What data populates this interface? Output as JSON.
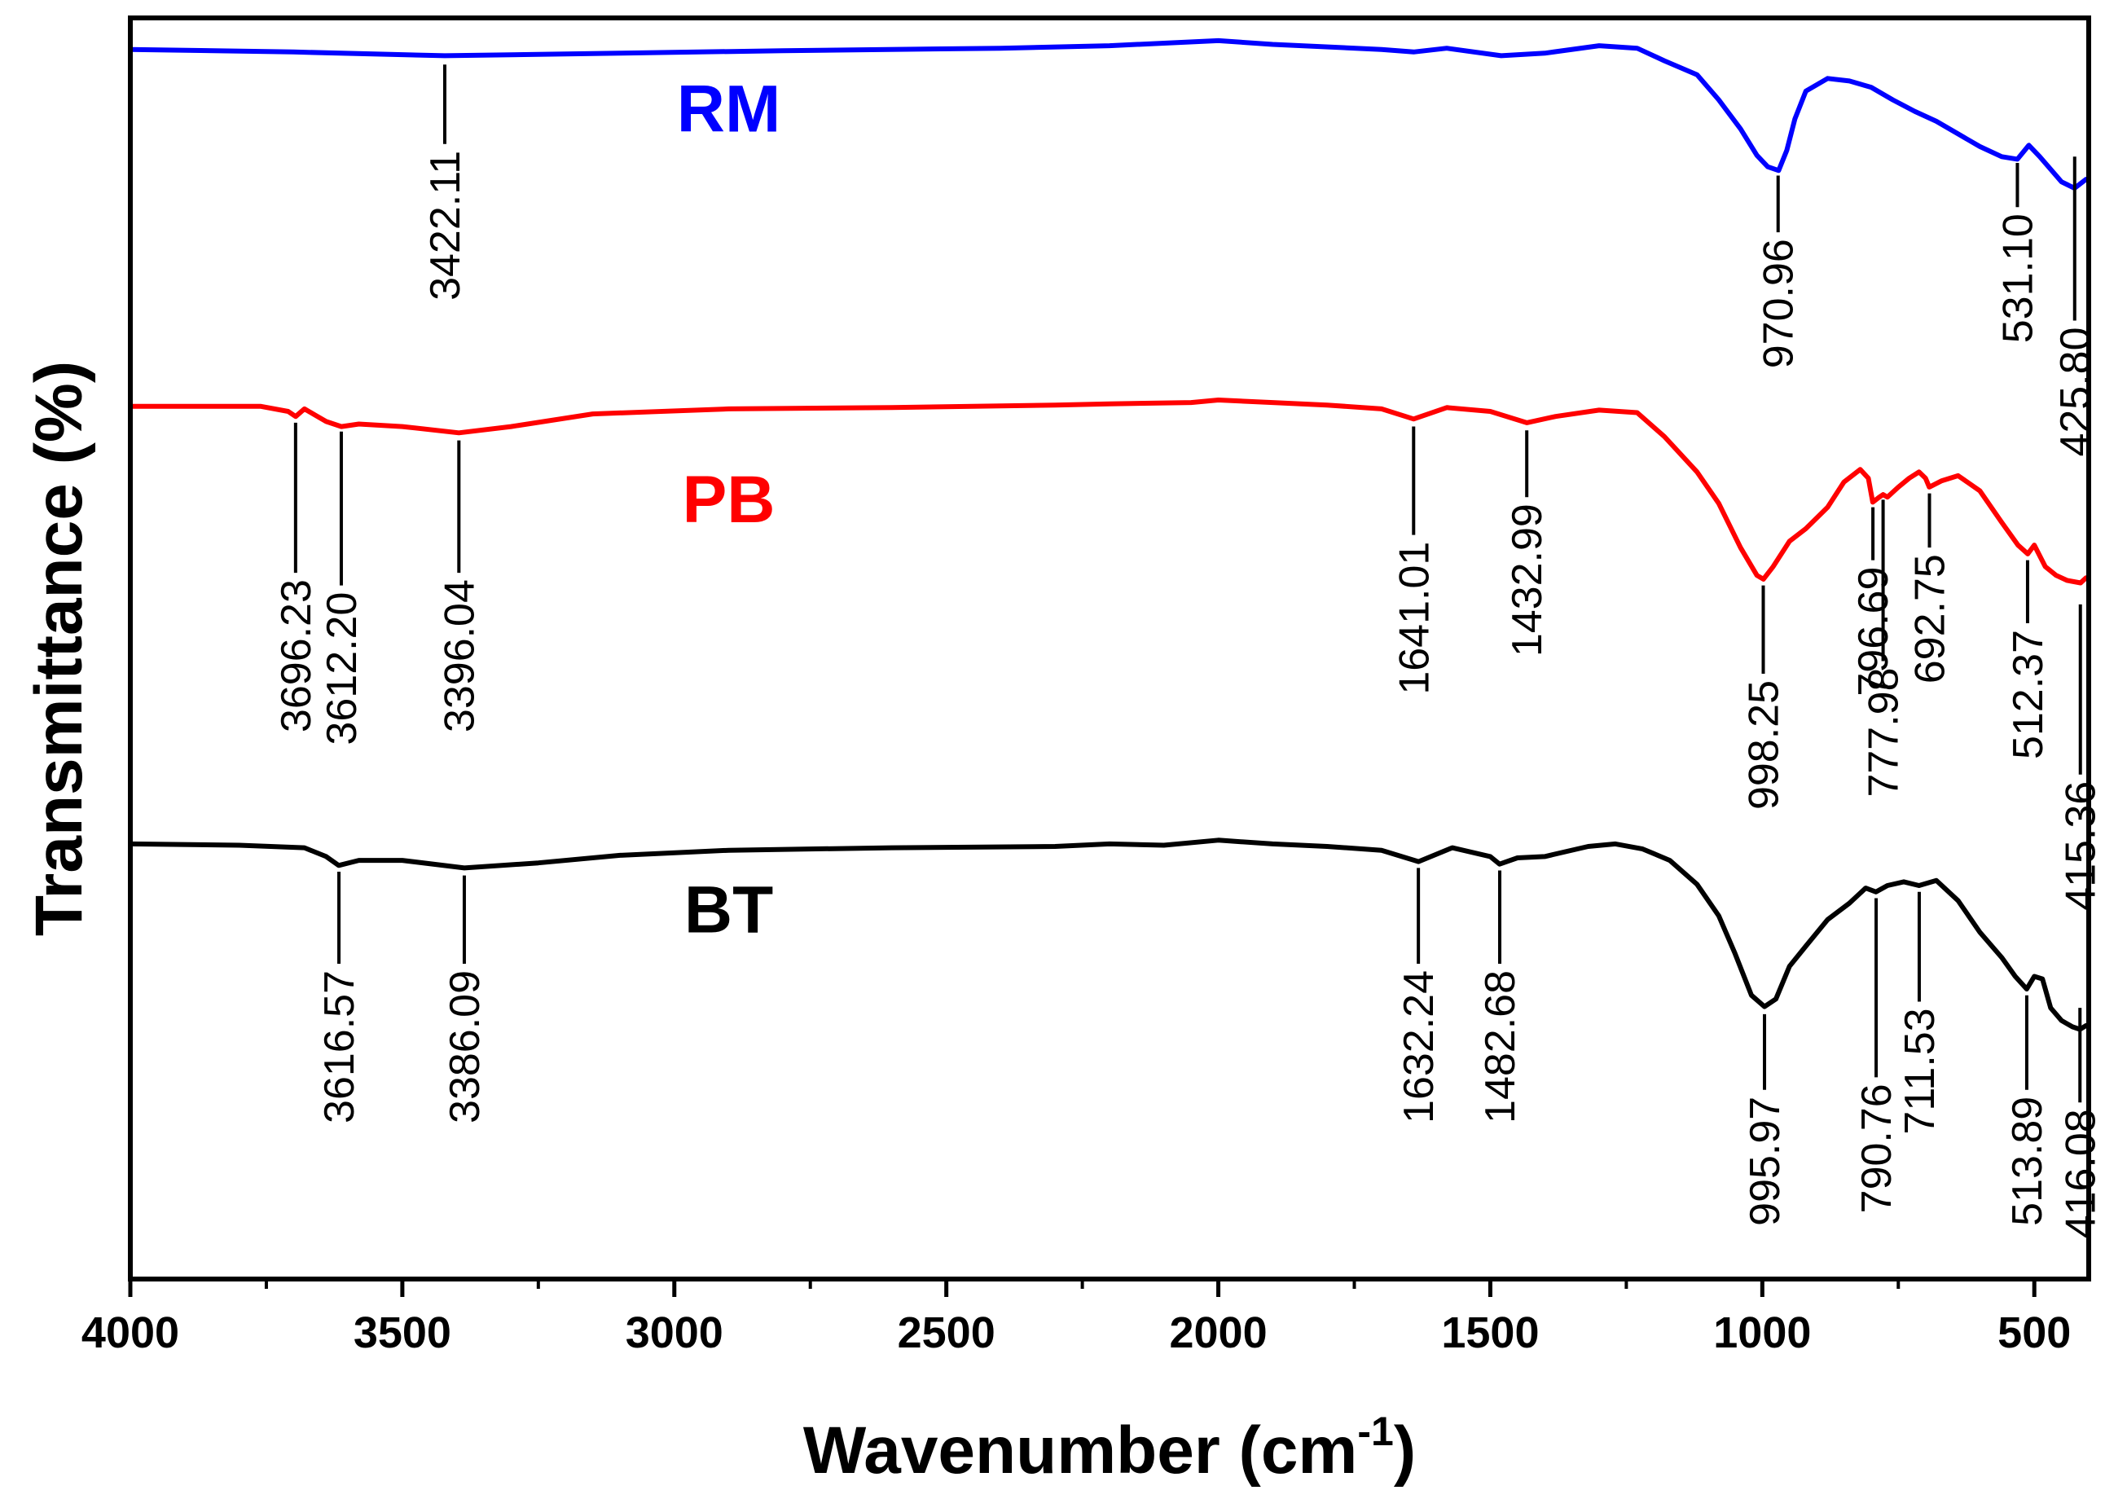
{
  "chart_data": {
    "type": "line",
    "title": "",
    "xlabel": "Wavenumber (cm",
    "xlabel_sup": "-1",
    "xlabel_close": ")",
    "ylabel": "Transmittance (%)",
    "xlim": [
      4000,
      400
    ],
    "x_reversed": true,
    "ylim": [
      0,
      100
    ],
    "x_ticks": [
      {
        "value": 4000,
        "label": "4000"
      },
      {
        "value": 3500,
        "label": "3500"
      },
      {
        "value": 3000,
        "label": "3000"
      },
      {
        "value": 2500,
        "label": "2500"
      },
      {
        "value": 2000,
        "label": "2000"
      },
      {
        "value": 1500,
        "label": "1500"
      },
      {
        "value": 1000,
        "label": "1000"
      },
      {
        "value": 500,
        "label": "500"
      }
    ],
    "x_minor_ticks": [
      3750,
      3250,
      2750,
      2250,
      1750,
      1250,
      750
    ],
    "series": [
      {
        "name": "RM",
        "color": "#0000ff",
        "label_at": [
          2900,
          91
        ],
        "points": [
          [
            4000,
            97.5
          ],
          [
            3700,
            97.3
          ],
          [
            3422,
            97.0
          ],
          [
            3100,
            97.2
          ],
          [
            2800,
            97.4
          ],
          [
            2400,
            97.6
          ],
          [
            2200,
            97.8
          ],
          [
            2000,
            98.2
          ],
          [
            1900,
            97.9
          ],
          [
            1700,
            97.5
          ],
          [
            1641,
            97.3
          ],
          [
            1580,
            97.6
          ],
          [
            1480,
            97.0
          ],
          [
            1400,
            97.2
          ],
          [
            1300,
            97.8
          ],
          [
            1230,
            97.6
          ],
          [
            1180,
            96.6
          ],
          [
            1120,
            95.5
          ],
          [
            1080,
            93.5
          ],
          [
            1040,
            91.2
          ],
          [
            1010,
            89.1
          ],
          [
            990,
            88.2
          ],
          [
            970,
            87.9
          ],
          [
            955,
            89.5
          ],
          [
            940,
            92.0
          ],
          [
            920,
            94.2
          ],
          [
            880,
            95.2
          ],
          [
            840,
            95.0
          ],
          [
            800,
            94.5
          ],
          [
            760,
            93.5
          ],
          [
            720,
            92.6
          ],
          [
            680,
            91.8
          ],
          [
            640,
            90.8
          ],
          [
            600,
            89.8
          ],
          [
            560,
            89.0
          ],
          [
            531,
            88.8
          ],
          [
            510,
            89.9
          ],
          [
            490,
            89.0
          ],
          [
            470,
            88.0
          ],
          [
            450,
            87.0
          ],
          [
            426,
            86.5
          ],
          [
            405,
            87.2
          ]
        ],
        "peaks": [
          {
            "x": 3422,
            "label": "3422.11",
            "tip_y": 96.3,
            "line_end": 90,
            "text_end": 90
          },
          {
            "x": 970.96,
            "label": "970.96",
            "tip_y": 87.5,
            "line_end": 83,
            "text_end": 83
          },
          {
            "x": 531.1,
            "label": "531.10",
            "tip_y": 88.5,
            "line_end": 85,
            "text_end": 85
          },
          {
            "x": 425.8,
            "label": "425.80",
            "tip_y": 89.0,
            "line_end": 76,
            "text_end": 76
          }
        ]
      },
      {
        "name": "PB",
        "color": "#ff0000",
        "label_at": [
          2900,
          60
        ],
        "points": [
          [
            4000,
            69.2
          ],
          [
            3760,
            69.2
          ],
          [
            3710,
            68.8
          ],
          [
            3696,
            68.4
          ],
          [
            3680,
            69.0
          ],
          [
            3640,
            68.0
          ],
          [
            3612,
            67.6
          ],
          [
            3580,
            67.8
          ],
          [
            3500,
            67.6
          ],
          [
            3396,
            67.1
          ],
          [
            3300,
            67.6
          ],
          [
            3150,
            68.6
          ],
          [
            2900,
            69.0
          ],
          [
            2600,
            69.1
          ],
          [
            2300,
            69.3
          ],
          [
            2200,
            69.4
          ],
          [
            2050,
            69.5
          ],
          [
            2000,
            69.7
          ],
          [
            1900,
            69.5
          ],
          [
            1800,
            69.3
          ],
          [
            1700,
            69.0
          ],
          [
            1641,
            68.2
          ],
          [
            1580,
            69.1
          ],
          [
            1500,
            68.8
          ],
          [
            1433,
            67.9
          ],
          [
            1380,
            68.4
          ],
          [
            1300,
            68.9
          ],
          [
            1230,
            68.7
          ],
          [
            1180,
            66.8
          ],
          [
            1120,
            64.0
          ],
          [
            1080,
            61.5
          ],
          [
            1040,
            58.0
          ],
          [
            1010,
            55.8
          ],
          [
            998,
            55.5
          ],
          [
            980,
            56.5
          ],
          [
            950,
            58.5
          ],
          [
            920,
            59.5
          ],
          [
            880,
            61.2
          ],
          [
            850,
            63.2
          ],
          [
            820,
            64.2
          ],
          [
            805,
            63.5
          ],
          [
            797,
            61.6
          ],
          [
            785,
            62.0
          ],
          [
            778,
            62.2
          ],
          [
            770,
            62.0
          ],
          [
            750,
            62.8
          ],
          [
            730,
            63.5
          ],
          [
            712,
            64.0
          ],
          [
            700,
            63.5
          ],
          [
            693,
            62.8
          ],
          [
            670,
            63.3
          ],
          [
            640,
            63.7
          ],
          [
            600,
            62.5
          ],
          [
            560,
            60.0
          ],
          [
            530,
            58.2
          ],
          [
            512,
            57.5
          ],
          [
            500,
            58.2
          ],
          [
            480,
            56.5
          ],
          [
            460,
            55.8
          ],
          [
            440,
            55.4
          ],
          [
            415,
            55.2
          ],
          [
            405,
            55.6
          ]
        ],
        "peaks": [
          {
            "x": 3696.23,
            "label": "3696.23",
            "tip_y": 67.9,
            "line_end": 56,
            "text_end": 56
          },
          {
            "x": 3612.2,
            "label": "3612.20",
            "tip_y": 67.2,
            "line_end": 55,
            "text_end": 55
          },
          {
            "x": 3396.04,
            "label": "3396.04",
            "tip_y": 66.5,
            "line_end": 56,
            "text_end": 56
          },
          {
            "x": 1641.01,
            "label": "1641.01",
            "tip_y": 67.6,
            "line_end": 59,
            "text_end": 59
          },
          {
            "x": 1432.99,
            "label": "1432.99",
            "tip_y": 67.3,
            "line_end": 62,
            "text_end": 62
          },
          {
            "x": 998.25,
            "label": "998.25",
            "tip_y": 55.0,
            "line_end": 48,
            "text_end": 48
          },
          {
            "x": 796.69,
            "label": "796.69",
            "tip_y": 61.2,
            "line_end": 57,
            "text_end": 57
          },
          {
            "x": 777.98,
            "label": "777.98",
            "tip_y": 61.8,
            "line_end": 49,
            "text_end": 49
          },
          {
            "x": 692.75,
            "label": "692.75",
            "tip_y": 62.3,
            "line_end": 58,
            "text_end": 58
          },
          {
            "x": 512.37,
            "label": "512.37",
            "tip_y": 57.0,
            "line_end": 52,
            "text_end": 52
          },
          {
            "x": 415.36,
            "label": "415.36",
            "tip_y": 53.5,
            "line_end": 40,
            "text_end": 40
          }
        ]
      },
      {
        "name": "BT",
        "color": "#000000",
        "label_at": [
          2900,
          27.5
        ],
        "points": [
          [
            4000,
            34.5
          ],
          [
            3800,
            34.4
          ],
          [
            3680,
            34.2
          ],
          [
            3640,
            33.5
          ],
          [
            3617,
            32.8
          ],
          [
            3580,
            33.2
          ],
          [
            3500,
            33.2
          ],
          [
            3386,
            32.6
          ],
          [
            3250,
            33.0
          ],
          [
            3100,
            33.6
          ],
          [
            2900,
            34.0
          ],
          [
            2600,
            34.2
          ],
          [
            2300,
            34.3
          ],
          [
            2200,
            34.5
          ],
          [
            2100,
            34.4
          ],
          [
            2000,
            34.8
          ],
          [
            1900,
            34.5
          ],
          [
            1800,
            34.3
          ],
          [
            1700,
            34.0
          ],
          [
            1632,
            33.1
          ],
          [
            1570,
            34.2
          ],
          [
            1500,
            33.5
          ],
          [
            1483,
            32.9
          ],
          [
            1450,
            33.4
          ],
          [
            1400,
            33.5
          ],
          [
            1320,
            34.3
          ],
          [
            1270,
            34.5
          ],
          [
            1220,
            34.1
          ],
          [
            1170,
            33.2
          ],
          [
            1120,
            31.3
          ],
          [
            1080,
            28.8
          ],
          [
            1050,
            25.8
          ],
          [
            1020,
            22.5
          ],
          [
            996,
            21.6
          ],
          [
            975,
            22.2
          ],
          [
            950,
            24.8
          ],
          [
            920,
            26.4
          ],
          [
            880,
            28.5
          ],
          [
            840,
            29.8
          ],
          [
            810,
            31.0
          ],
          [
            791,
            30.7
          ],
          [
            770,
            31.2
          ],
          [
            740,
            31.5
          ],
          [
            712,
            31.2
          ],
          [
            680,
            31.6
          ],
          [
            640,
            30.0
          ],
          [
            600,
            27.5
          ],
          [
            560,
            25.5
          ],
          [
            535,
            24.0
          ],
          [
            514,
            23.0
          ],
          [
            500,
            24.0
          ],
          [
            485,
            23.8
          ],
          [
            470,
            21.5
          ],
          [
            450,
            20.5
          ],
          [
            430,
            20.0
          ],
          [
            416,
            19.8
          ],
          [
            405,
            20.1
          ]
        ],
        "peaks": [
          {
            "x": 3616.57,
            "label": "3616.57",
            "tip_y": 32.3,
            "line_end": 25,
            "text_end": 25
          },
          {
            "x": 3386.09,
            "label": "3386.09",
            "tip_y": 32.0,
            "line_end": 25,
            "text_end": 25
          },
          {
            "x": 1632.24,
            "label": "1632.24",
            "tip_y": 32.6,
            "line_end": 25,
            "text_end": 25
          },
          {
            "x": 1482.68,
            "label": "1482.68",
            "tip_y": 32.4,
            "line_end": 25,
            "text_end": 25
          },
          {
            "x": 995.97,
            "label": "995.97",
            "tip_y": 21.0,
            "line_end": 15,
            "text_end": 15
          },
          {
            "x": 790.76,
            "label": "790.76",
            "tip_y": 30.2,
            "line_end": 16,
            "text_end": 16
          },
          {
            "x": 711.53,
            "label": "711.53",
            "tip_y": 30.7,
            "line_end": 22,
            "text_end": 22
          },
          {
            "x": 513.89,
            "label": "513.89",
            "tip_y": 22.5,
            "line_end": 15,
            "text_end": 15
          },
          {
            "x": 416.08,
            "label": "416.08",
            "tip_y": 21.5,
            "line_end": 14,
            "text_end": 14
          }
        ]
      }
    ]
  }
}
